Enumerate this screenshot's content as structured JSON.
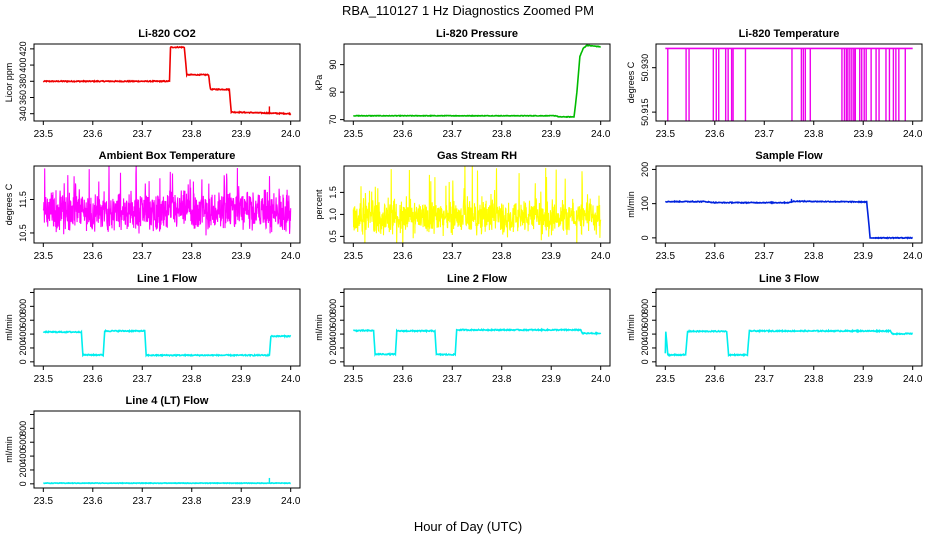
{
  "figure": {
    "title": "RBA_110127  1 Hz Diagnostics Zoomed PM",
    "xlabel": "Hour of Day (UTC)"
  },
  "chart_data": [
    {
      "type": "line",
      "title": "Li-820 CO2",
      "ylabel": "Licor ppm",
      "color": "#ee0000",
      "xlim": [
        23.5,
        24.0
      ],
      "ylim": [
        331,
        426
      ],
      "xticks": [
        "23.5",
        "23.6",
        "23.7",
        "23.8",
        "23.9",
        "24.0"
      ],
      "yticks": [
        340,
        360,
        380,
        400,
        420
      ],
      "noise": 0.6,
      "x": [
        23.5,
        23.755,
        23.757,
        23.785,
        23.79,
        23.834,
        23.838,
        23.876,
        23.88,
        24.0
      ],
      "y": [
        380,
        380,
        422,
        422,
        388,
        388,
        370,
        370,
        342,
        340
      ],
      "spikes": [
        [
          23.957,
          349
        ]
      ]
    },
    {
      "type": "line",
      "title": "Li-820 Pressure",
      "ylabel": "kPa",
      "color": "#00bb00",
      "xlim": [
        23.5,
        24.0
      ],
      "ylim": [
        69.5,
        97.5
      ],
      "xticks": [
        "23.5",
        "23.6",
        "23.7",
        "23.8",
        "23.9",
        "24.0"
      ],
      "yticks": [
        70,
        80,
        90
      ],
      "noise": 0.1,
      "x": [
        23.5,
        23.91,
        23.915,
        23.946,
        23.952,
        23.958,
        23.965,
        23.972,
        24.0
      ],
      "y": [
        71.4,
        71.4,
        71.0,
        71.0,
        80,
        93,
        96,
        97,
        96.5
      ],
      "spikes": []
    },
    {
      "type": "switch",
      "title": "Li-820 Temperature",
      "ylabel": "degrees C",
      "color": "#ee00ee",
      "xlim": [
        23.5,
        24.0
      ],
      "ylim": [
        50.912,
        50.938
      ],
      "xticks": [
        "23.5",
        "23.6",
        "23.7",
        "23.8",
        "23.9",
        "24.0"
      ],
      "yticks": [
        50.915,
        50.93
      ],
      "ytick_labels": [
        "50.915",
        "50.930"
      ],
      "high": 50.9365,
      "low": 50.912,
      "drops": [
        23.505,
        23.542,
        23.548,
        23.597,
        23.603,
        23.608,
        23.622,
        23.627,
        23.634,
        23.637,
        23.662,
        23.756,
        23.775,
        23.779,
        23.783,
        23.793,
        23.857,
        23.862,
        23.866,
        23.869,
        23.873,
        23.877,
        23.881,
        23.884,
        23.893,
        23.897,
        23.902,
        23.906,
        23.916,
        23.926,
        23.932,
        23.946,
        23.953,
        23.961,
        23.966,
        23.972,
        23.985
      ]
    },
    {
      "type": "noise",
      "title": "Ambient Box Temperature",
      "ylabel": "degrees C",
      "color": "#ff00ff",
      "xlim": [
        23.5,
        24.0
      ],
      "ylim": [
        10.2,
        12.5
      ],
      "xticks": [
        "23.5",
        "23.6",
        "23.7",
        "23.8",
        "23.9",
        "24.0"
      ],
      "yticks": [
        10.5,
        11.5
      ],
      "ytick_labels": [
        "10.5",
        "11.5"
      ],
      "center": 11.15,
      "amp": 0.7,
      "spike": 1.1
    },
    {
      "type": "noise",
      "title": "Gas Stream RH",
      "ylabel": "percent",
      "color": "#ffff00",
      "xlim": [
        23.5,
        24.0
      ],
      "ylim": [
        0.35,
        2.1
      ],
      "xticks": [
        "23.5",
        "23.6",
        "23.7",
        "23.8",
        "23.9",
        "24.0"
      ],
      "yticks": [
        0.5,
        1.0,
        1.5
      ],
      "ytick_labels": [
        "0.5",
        "1.0",
        "1.5"
      ],
      "center": 0.95,
      "amp": 0.45,
      "spike": 0.95
    },
    {
      "type": "line",
      "title": "Sample Flow",
      "ylabel": "ml/min",
      "color": "#0022dd",
      "xlim": [
        23.5,
        24.0
      ],
      "ylim": [
        -15,
        210
      ],
      "xticks": [
        "23.5",
        "23.6",
        "23.7",
        "23.8",
        "23.9",
        "24.0"
      ],
      "yticks": [
        0,
        100,
        200
      ],
      "noise": 1.2,
      "x": [
        23.5,
        23.58,
        23.6,
        23.75,
        23.76,
        23.907,
        23.914,
        24.0
      ],
      "y": [
        106,
        106,
        103,
        103,
        107,
        105,
        0,
        0
      ],
      "spikes": [
        [
          23.755,
          114
        ],
        [
          23.555,
          110
        ]
      ]
    },
    {
      "type": "line",
      "title": "Line 1 Flow",
      "ylabel": "ml/min",
      "color": "#00eeee",
      "xlim": [
        23.5,
        24.0
      ],
      "ylim": [
        -60,
        1050
      ],
      "xticks": [
        "23.5",
        "23.6",
        "23.7",
        "23.8",
        "23.9",
        "24.0"
      ],
      "yticks": [
        0,
        200,
        400,
        600,
        800,
        1000
      ],
      "ytick_labels": [
        "0",
        "200",
        "400",
        "600",
        "800",
        ""
      ],
      "noise": 8,
      "x": [
        23.5,
        23.577,
        23.58,
        23.621,
        23.624,
        23.705,
        23.708,
        23.957,
        23.96,
        24.0
      ],
      "y": [
        430,
        430,
        100,
        100,
        445,
        445,
        95,
        95,
        370,
        370
      ],
      "spikes": []
    },
    {
      "type": "line",
      "title": "Line 2 Flow",
      "ylabel": "ml/min",
      "color": "#00eeee",
      "xlim": [
        23.5,
        24.0
      ],
      "ylim": [
        -60,
        1050
      ],
      "xticks": [
        "23.5",
        "23.6",
        "23.7",
        "23.8",
        "23.9",
        "24.0"
      ],
      "yticks": [
        0,
        200,
        400,
        600,
        800,
        1000
      ],
      "ytick_labels": [
        "0",
        "200",
        "400",
        "600",
        "800",
        ""
      ],
      "noise": 8,
      "x": [
        23.5,
        23.541,
        23.544,
        23.585,
        23.588,
        23.665,
        23.668,
        23.706,
        23.709,
        23.96,
        23.963,
        24.0
      ],
      "y": [
        450,
        450,
        110,
        110,
        445,
        445,
        105,
        105,
        460,
        460,
        410,
        410
      ],
      "spikes": []
    },
    {
      "type": "line",
      "title": "Line 3 Flow",
      "ylabel": "ml/min",
      "color": "#00eeee",
      "xlim": [
        23.5,
        24.0
      ],
      "ylim": [
        -60,
        1050
      ],
      "xticks": [
        "23.5",
        "23.6",
        "23.7",
        "23.8",
        "23.9",
        "24.0"
      ],
      "yticks": [
        0,
        200,
        400,
        600,
        800,
        1000
      ],
      "ytick_labels": [
        "0",
        "200",
        "400",
        "600",
        "800",
        ""
      ],
      "noise": 8,
      "x": [
        23.5,
        23.501,
        23.505,
        23.541,
        23.545,
        23.624,
        23.628,
        23.666,
        23.67,
        23.955,
        23.958,
        24.0
      ],
      "y": [
        120,
        440,
        100,
        100,
        440,
        440,
        100,
        100,
        445,
        445,
        405,
        405
      ],
      "spikes": []
    },
    {
      "type": "line",
      "title": "Line 4 (LT) Flow",
      "ylabel": "ml/min",
      "color": "#00eeee",
      "xlim": [
        23.5,
        24.0
      ],
      "ylim": [
        -60,
        1050
      ],
      "xticks": [
        "23.5",
        "23.6",
        "23.7",
        "23.8",
        "23.9",
        "24.0"
      ],
      "yticks": [
        0,
        200,
        400,
        600,
        800,
        1000
      ],
      "ytick_labels": [
        "0",
        "200",
        "400",
        "600",
        "800",
        ""
      ],
      "noise": 4,
      "x": [
        23.5,
        24.0
      ],
      "y": [
        10,
        10
      ],
      "spikes": [
        [
          23.957,
          85
        ]
      ]
    }
  ]
}
